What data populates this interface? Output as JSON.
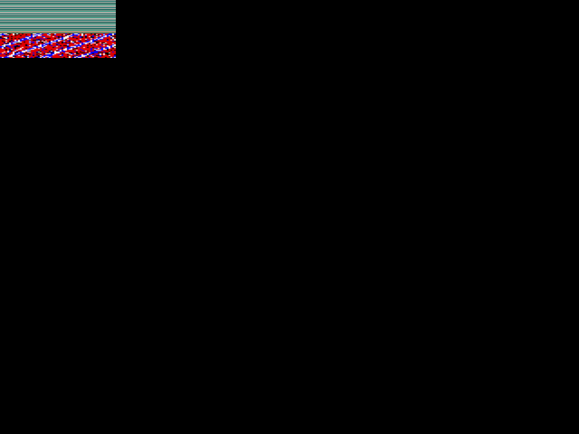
{
  "screen": {
    "background": "#000000",
    "glitch_colors": {
      "stripes": [
        "#8a9a92",
        "#2f7f78",
        "#a4aaa0",
        "#1f6a62",
        "#3a9a86",
        "#b06a20"
      ],
      "noise": [
        "#e00000",
        "#0000ff",
        "#ffffff",
        "#000000"
      ]
    }
  }
}
